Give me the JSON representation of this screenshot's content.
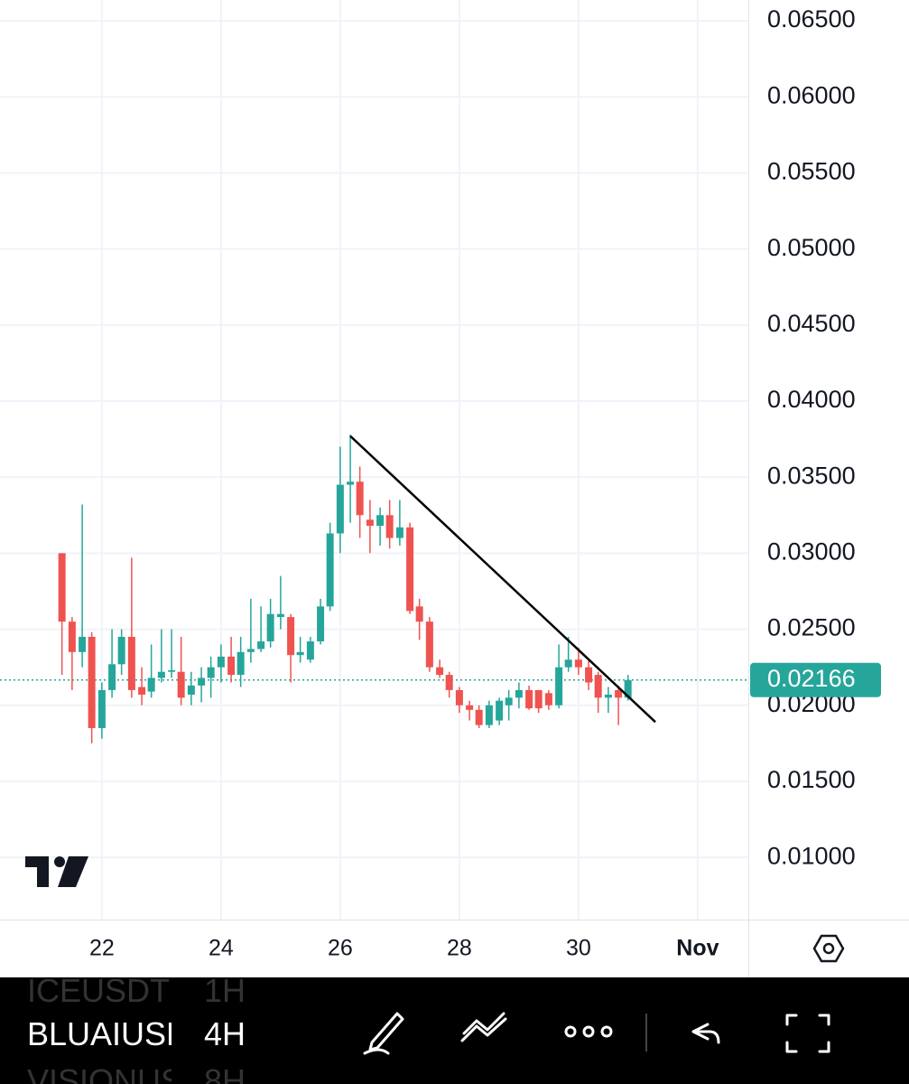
{
  "chart_data": {
    "type": "candlestick",
    "x": [
      21.33,
      21.5,
      21.67,
      21.83,
      22,
      22.17,
      22.33,
      22.5,
      22.67,
      22.83,
      23,
      23.17,
      23.33,
      23.5,
      23.67,
      23.83,
      24,
      24.17,
      24.33,
      24.5,
      24.67,
      24.83,
      25,
      25.17,
      25.33,
      25.5,
      25.67,
      25.83,
      26,
      26.17,
      26.33,
      26.5,
      26.67,
      26.83,
      27,
      27.17,
      27.33,
      27.5,
      27.67,
      27.83,
      28,
      28.17,
      28.33,
      28.5,
      28.67,
      28.83,
      29,
      29.17,
      29.33,
      29.5,
      29.67,
      29.83,
      30,
      30.17,
      30.33,
      30.5,
      30.67,
      30.83
    ],
    "open": [
      0.03,
      0.0255,
      0.0235,
      0.0245,
      0.0185,
      0.021,
      0.0227,
      0.0245,
      0.0212,
      0.0209,
      0.0218,
      0.0222,
      0.0222,
      0.0207,
      0.0213,
      0.0218,
      0.0225,
      0.0232,
      0.022,
      0.0235,
      0.0237,
      0.0242,
      0.0258,
      0.0258,
      0.0233,
      0.023,
      0.0242,
      0.0265,
      0.0313,
      0.0345,
      0.0347,
      0.0322,
      0.0318,
      0.0325,
      0.031,
      0.0317,
      0.0265,
      0.0255,
      0.0225,
      0.022,
      0.021,
      0.02,
      0.0197,
      0.0187,
      0.019,
      0.02,
      0.0205,
      0.021,
      0.021,
      0.0208,
      0.02,
      0.0225,
      0.023,
      0.0225,
      0.022,
      0.0205,
      0.021,
      0.0205
    ],
    "high": [
      0.03,
      0.0258,
      0.0332,
      0.0248,
      0.0215,
      0.025,
      0.025,
      0.0297,
      0.0225,
      0.024,
      0.025,
      0.025,
      0.0245,
      0.0222,
      0.0225,
      0.0232,
      0.024,
      0.0245,
      0.0245,
      0.027,
      0.0265,
      0.027,
      0.0285,
      0.026,
      0.0245,
      0.0245,
      0.027,
      0.032,
      0.037,
      0.0378,
      0.0357,
      0.0335,
      0.033,
      0.0335,
      0.0335,
      0.032,
      0.027,
      0.0258,
      0.023,
      0.0222,
      0.0212,
      0.0203,
      0.02,
      0.0203,
      0.0205,
      0.021,
      0.0215,
      0.0213,
      0.021,
      0.021,
      0.024,
      0.0245,
      0.0238,
      0.023,
      0.0222,
      0.0212,
      0.0213,
      0.022
    ],
    "low": [
      0.022,
      0.021,
      0.0225,
      0.0175,
      0.0178,
      0.0205,
      0.022,
      0.0205,
      0.02,
      0.0205,
      0.0215,
      0.0218,
      0.02,
      0.02,
      0.0202,
      0.0205,
      0.0215,
      0.0215,
      0.0212,
      0.0228,
      0.0235,
      0.0238,
      0.025,
      0.0215,
      0.0228,
      0.0228,
      0.024,
      0.0262,
      0.03,
      0.032,
      0.031,
      0.03,
      0.0305,
      0.0303,
      0.0305,
      0.026,
      0.0243,
      0.0222,
      0.0218,
      0.0205,
      0.0195,
      0.019,
      0.0185,
      0.0185,
      0.0187,
      0.019,
      0.0198,
      0.0197,
      0.0195,
      0.0197,
      0.0198,
      0.0222,
      0.022,
      0.021,
      0.0195,
      0.0195,
      0.0187,
      0.0203
    ],
    "close": [
      0.0255,
      0.0235,
      0.0245,
      0.0185,
      0.021,
      0.0227,
      0.0245,
      0.021,
      0.0207,
      0.0218,
      0.0222,
      0.0223,
      0.0205,
      0.0213,
      0.0218,
      0.0225,
      0.0232,
      0.022,
      0.0235,
      0.0237,
      0.0242,
      0.026,
      0.026,
      0.0233,
      0.0235,
      0.0242,
      0.0265,
      0.0313,
      0.0345,
      0.0347,
      0.0325,
      0.0318,
      0.0325,
      0.031,
      0.0317,
      0.0262,
      0.0255,
      0.0225,
      0.022,
      0.021,
      0.02,
      0.0197,
      0.0187,
      0.02,
      0.0203,
      0.0205,
      0.021,
      0.0198,
      0.0198,
      0.02,
      0.0225,
      0.023,
      0.0225,
      0.0215,
      0.0205,
      0.0207,
      0.0205,
      0.02166
    ],
    "up_color": "#26a69a",
    "down_color": "#ef5350",
    "xlim": [
      20.29,
      32.85
    ],
    "xticks": [
      22,
      24,
      26,
      28,
      30,
      {
        "value": 32,
        "label": "Nov"
      }
    ],
    "ylim": [
      0.00591,
      0.06637
    ],
    "yticks": [
      {
        "value": 0.065,
        "label": "0.06500"
      },
      {
        "value": 0.06,
        "label": "0.06000"
      },
      {
        "value": 0.055,
        "label": "0.05500"
      },
      {
        "value": 0.05,
        "label": "0.05000"
      },
      {
        "value": 0.045,
        "label": "0.04500"
      },
      {
        "value": 0.04,
        "label": "0.04000"
      },
      {
        "value": 0.035,
        "label": "0.03500"
      },
      {
        "value": 0.03,
        "label": "0.03000"
      },
      {
        "value": 0.025,
        "label": "0.02500"
      },
      {
        "value": 0.02,
        "label": "0.02000"
      },
      {
        "value": 0.015,
        "label": "0.01500"
      },
      {
        "value": 0.01,
        "label": "0.01000"
      }
    ],
    "grid": true,
    "last_price": {
      "value": 0.02166,
      "label": "0.02166",
      "color": "#26a69a"
    },
    "trendline": {
      "x": [
        26.17,
        31.29
      ],
      "y": [
        0.0377,
        0.0189
      ],
      "color": "#000000"
    }
  },
  "toolbar": {
    "symbols": [
      "ICEUSDT",
      "BLUAIUSDT",
      "VISIONUSDT"
    ],
    "intervals": [
      "1H",
      "4H",
      "8H"
    ]
  }
}
